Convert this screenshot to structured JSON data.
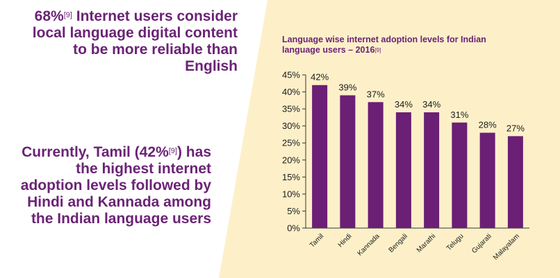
{
  "colors": {
    "panel": "#fdf0c9",
    "accent": "#6b2376",
    "bar": "#6b1f75",
    "axis": "#333333"
  },
  "callouts": {
    "c1_stat": "68%",
    "c1_ref": "[9]",
    "c1_text": " Internet users consider local language digital content to be more reliable than English",
    "c2_pre": "Currently, Tamil (42%",
    "c2_ref": "[9]",
    "c2_post": ") has the highest internet adoption levels followed by Hindi and Kannada among the Indian language users"
  },
  "chart_data": {
    "type": "bar",
    "title": "Language wise internet adoption levels for Indian language users – 2016",
    "title_ref": "[9]",
    "categories": [
      "Tamil",
      "Hindi",
      "Kannada",
      "Bengali",
      "Marathi",
      "Telugu",
      "Gujarati",
      "Malayalam"
    ],
    "values": [
      42,
      39,
      37,
      34,
      34,
      31,
      28,
      27
    ],
    "data_labels": [
      "42%",
      "39%",
      "37%",
      "34%",
      "34%",
      "31%",
      "28%",
      "27%"
    ],
    "yticks": [
      0,
      5,
      10,
      15,
      20,
      25,
      30,
      35,
      40,
      45
    ],
    "ytick_labels": [
      "0%",
      "5%",
      "10%",
      "15%",
      "20%",
      "25%",
      "30%",
      "35%",
      "40%",
      "45%"
    ],
    "ylim": [
      0,
      45
    ],
    "grid": false
  }
}
